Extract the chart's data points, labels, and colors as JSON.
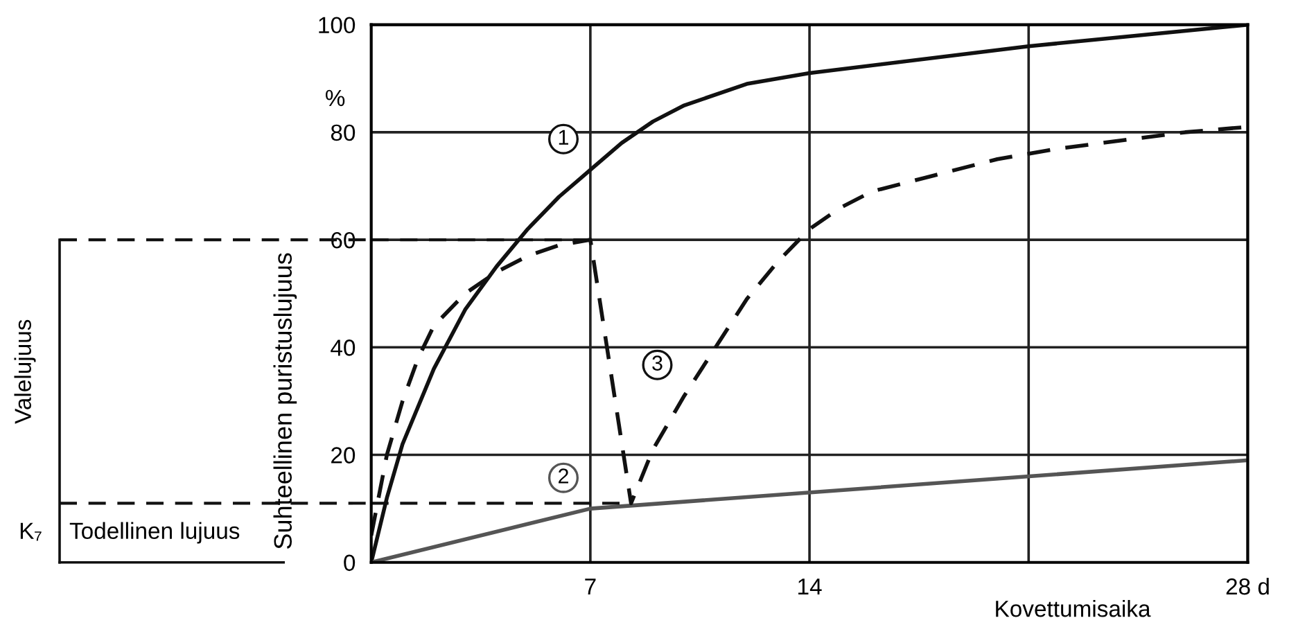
{
  "chart_data": {
    "type": "line",
    "xlabel": "Kovettumisaika",
    "ylabel": "Suhteellinen puristuslujuus",
    "xlim": [
      0,
      28
    ],
    "ylim": [
      0,
      100
    ],
    "xticks": [
      7,
      14,
      {
        "value": 21,
        "label": null
      },
      {
        "value": 28,
        "label": "28 d"
      }
    ],
    "yticks": [
      0,
      20,
      40,
      60,
      80,
      100
    ],
    "grid": true,
    "series": [
      {
        "name": "1",
        "color": "#111111",
        "line_style": "solid",
        "x": [
          0,
          0.5,
          1,
          2,
          3,
          4,
          5,
          6,
          7,
          8,
          9,
          10,
          12,
          14,
          21,
          28
        ],
        "values": [
          0,
          12,
          22,
          36,
          47,
          55,
          62,
          68,
          73,
          78,
          82,
          85,
          89,
          91,
          96,
          100
        ]
      },
      {
        "name": "2",
        "color": "#555555",
        "line_style": "solid",
        "x": [
          0,
          7,
          28
        ],
        "values": [
          0,
          10,
          19
        ]
      },
      {
        "name": "3",
        "color": "#111111",
        "line_style": "dashed",
        "x": [
          0,
          0.5,
          1,
          1.5,
          2,
          3,
          4,
          5,
          6,
          7,
          8.3,
          9,
          10,
          11,
          12,
          13,
          14,
          15,
          16,
          18,
          20,
          22,
          24,
          26,
          28
        ],
        "values": [
          5,
          20,
          30,
          38,
          44,
          50,
          54,
          57,
          59,
          60,
          11,
          21,
          31,
          40,
          49,
          56,
          62,
          66,
          69,
          72,
          75,
          77,
          78.5,
          80,
          81
        ]
      }
    ],
    "ref_lines": [
      {
        "axis": "y",
        "value": 60,
        "line_style": "dashed"
      },
      {
        "axis": "y",
        "value": 11,
        "line_style": "dashed"
      }
    ],
    "annotations": [
      "%",
      "Valelujuus",
      "K₇",
      "Todellinen lujuus"
    ]
  }
}
